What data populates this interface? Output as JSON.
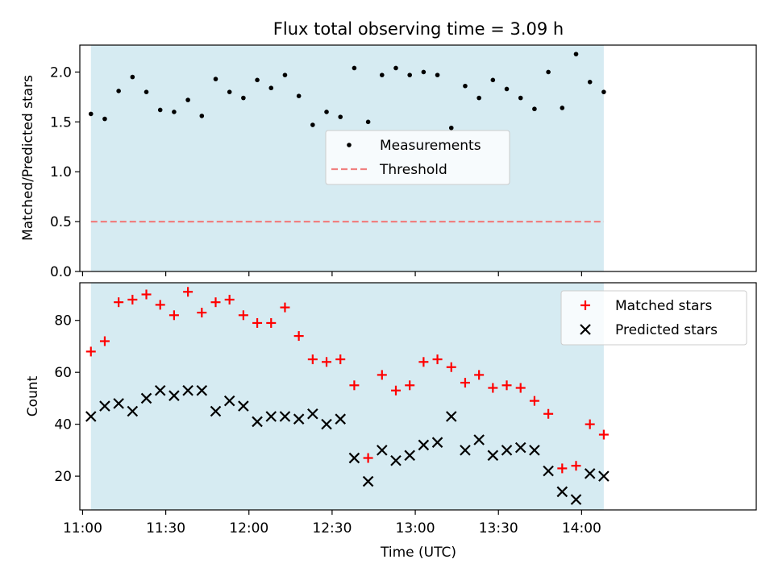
{
  "chart_data": {
    "title": "Flux total observing time = 3.09 h",
    "x_times": [
      "11:03",
      "11:08",
      "11:13",
      "11:18",
      "11:23",
      "11:28",
      "11:33",
      "11:38",
      "11:43",
      "11:48",
      "11:53",
      "11:58",
      "12:03",
      "12:08",
      "12:13",
      "12:18",
      "12:23",
      "12:28",
      "12:33",
      "12:38",
      "12:43",
      "12:48",
      "12:53",
      "12:58",
      "13:03",
      "13:08",
      "13:13",
      "13:18",
      "13:23",
      "13:28",
      "13:33",
      "13:38",
      "13:43",
      "13:48",
      "13:53",
      "13:58",
      "14:03",
      "14:08"
    ],
    "x_range": [
      "10:59",
      "15:03"
    ],
    "x_ticks": [
      "11:00",
      "11:30",
      "12:00",
      "12:30",
      "13:00",
      "13:30",
      "14:00"
    ],
    "xlabel": "Time (UTC)",
    "shaded_span": [
      "11:03",
      "14:08"
    ],
    "shade_color": "#add8e6",
    "top": {
      "type": "scatter",
      "ylabel": "Matched/Predicted stars",
      "ylim": [
        0,
        2.27
      ],
      "y_ticks": [
        "0.0",
        "0.5",
        "1.0",
        "1.5",
        "2.0"
      ],
      "threshold": 0.5,
      "threshold_color": "#f08080",
      "series": [
        {
          "name": "Measurements",
          "color": "#000000",
          "marker": "dot",
          "values": [
            1.58,
            1.53,
            1.81,
            1.95,
            1.8,
            1.62,
            1.6,
            1.72,
            1.56,
            1.93,
            1.8,
            1.74,
            1.92,
            1.84,
            1.97,
            1.76,
            1.47,
            1.6,
            1.55,
            2.04,
            1.5,
            1.97,
            2.04,
            1.97,
            2.0,
            1.97,
            1.44,
            1.86,
            1.74,
            1.92,
            1.83,
            1.74,
            1.63,
            2.0,
            1.64,
            2.18,
            1.9,
            1.8
          ]
        }
      ],
      "legend": [
        {
          "label": "Measurements",
          "marker": "dot",
          "color": "#000000"
        },
        {
          "label": "Threshold",
          "marker": "dash",
          "color": "#f08080"
        }
      ],
      "legend_placement": "center"
    },
    "bottom": {
      "type": "scatter",
      "ylabel": "Count",
      "ylim": [
        7,
        94.5
      ],
      "y_ticks": [
        "20",
        "40",
        "60",
        "80"
      ],
      "series": [
        {
          "name": "Matched stars",
          "color": "#ff0000",
          "marker": "plus",
          "values": [
            68,
            72,
            87,
            88,
            90,
            86,
            82,
            91,
            83,
            87,
            88,
            82,
            79,
            79,
            85,
            74,
            65,
            64,
            65,
            55,
            27,
            59,
            53,
            55,
            64,
            65,
            62,
            56,
            59,
            54,
            55,
            54,
            49,
            44,
            23,
            24,
            40,
            36
          ]
        },
        {
          "name": "Predicted stars",
          "color": "#000000",
          "marker": "x",
          "values": [
            43,
            47,
            48,
            45,
            50,
            53,
            51,
            53,
            53,
            45,
            49,
            47,
            41,
            43,
            43,
            42,
            44,
            40,
            42,
            27,
            18,
            30,
            26,
            28,
            32,
            33,
            43,
            30,
            34,
            28,
            30,
            31,
            30,
            22,
            14,
            11,
            21,
            20
          ]
        }
      ],
      "legend_placement": "top-right"
    }
  }
}
